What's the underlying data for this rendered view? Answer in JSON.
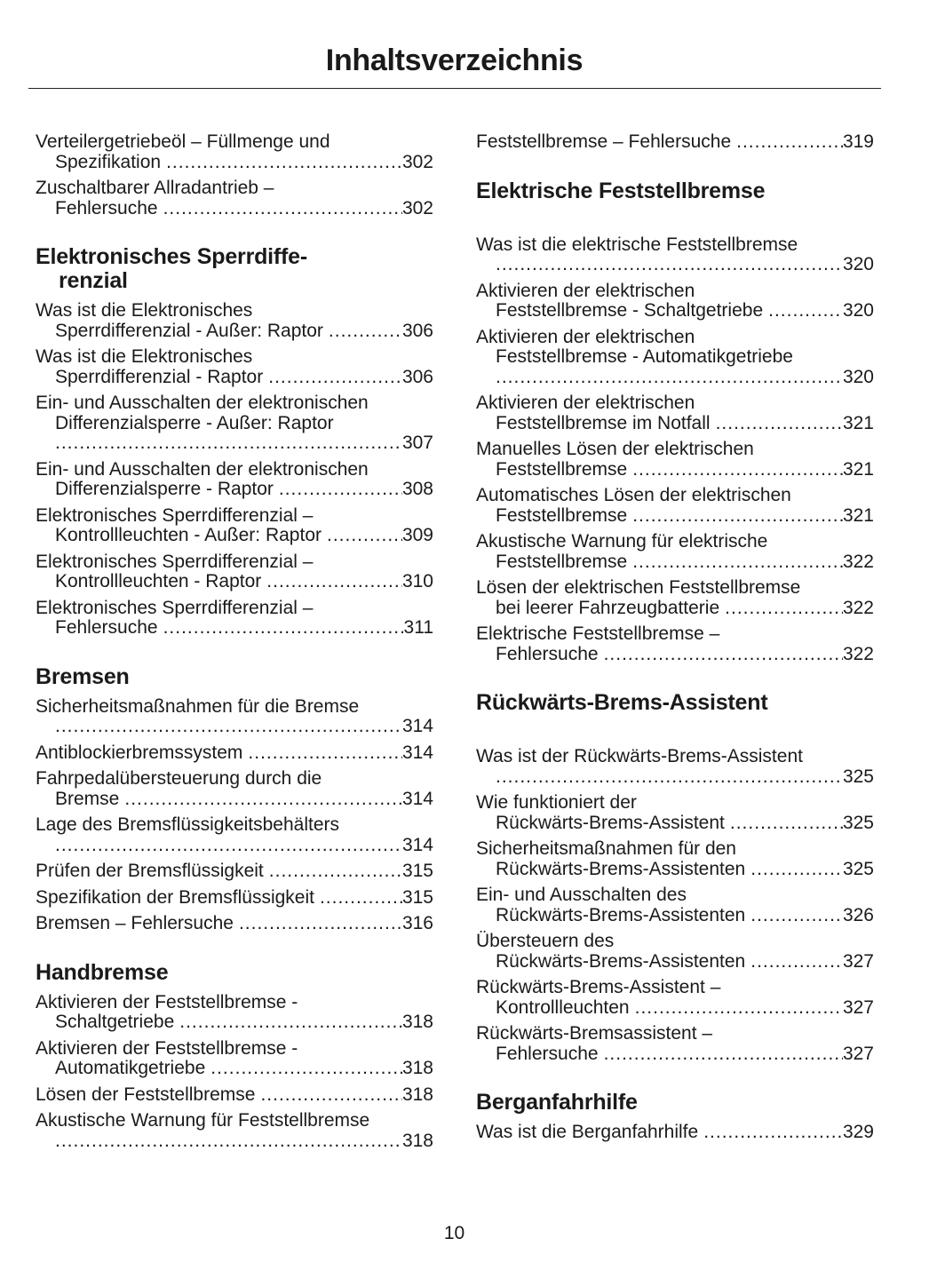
{
  "title": "Inhaltsverzeichnis",
  "page_number": "10",
  "left": [
    {
      "type": "entry",
      "lines": [
        "Verteilergetriebeöl – Füllmenge und",
        "Spezifikation"
      ],
      "page": "302"
    },
    {
      "type": "entry",
      "lines": [
        "Zuschaltbarer Allradantrieb –",
        "Fehlersuche"
      ],
      "page": "302"
    },
    {
      "type": "heading",
      "lines": [
        "Elektronisches Sperrdiffe-",
        "renzial"
      ]
    },
    {
      "type": "entry",
      "lines": [
        "Was ist die Elektronisches",
        "Sperrdifferenzial - Außer: Raptor"
      ],
      "page": "306"
    },
    {
      "type": "entry",
      "lines": [
        "Was ist die Elektronisches",
        "Sperrdifferenzial - Raptor"
      ],
      "page": "306"
    },
    {
      "type": "entry",
      "lines": [
        "Ein- und Ausschalten der elektronischen",
        "Differenzialsperre - Außer: Raptor",
        ""
      ],
      "page": "307"
    },
    {
      "type": "entry",
      "lines": [
        "Ein- und Ausschalten der elektronischen",
        "Differenzialsperre - Raptor"
      ],
      "page": "308"
    },
    {
      "type": "entry",
      "lines": [
        "Elektronisches Sperrdifferenzial –",
        "Kontrollleuchten - Außer: Raptor"
      ],
      "page": "309"
    },
    {
      "type": "entry",
      "lines": [
        "Elektronisches Sperrdifferenzial –",
        "Kontrollleuchten - Raptor"
      ],
      "page": "310"
    },
    {
      "type": "entry",
      "lines": [
        "Elektronisches Sperrdifferenzial –",
        "Fehlersuche"
      ],
      "page": "311"
    },
    {
      "type": "heading",
      "lines": [
        "Bremsen"
      ]
    },
    {
      "type": "entry",
      "lines": [
        "Sicherheitsmaßnahmen für die Bremse",
        ""
      ],
      "page": "314"
    },
    {
      "type": "entry",
      "lines": [
        "Antiblockierbremssystem"
      ],
      "page": "314"
    },
    {
      "type": "entry",
      "lines": [
        "Fahrpedalübersteuerung durch die",
        "Bremse"
      ],
      "page": "314"
    },
    {
      "type": "entry",
      "lines": [
        "Lage des Bremsflüssigkeitsbehälters",
        ""
      ],
      "page": "314"
    },
    {
      "type": "entry",
      "lines": [
        "Prüfen der Bremsflüssigkeit"
      ],
      "page": "315"
    },
    {
      "type": "entry",
      "lines": [
        "Spezifikation der Bremsflüssigkeit"
      ],
      "page": "315"
    },
    {
      "type": "entry",
      "lines": [
        "Bremsen – Fehlersuche"
      ],
      "page": "316"
    },
    {
      "type": "heading",
      "lines": [
        "Handbremse"
      ]
    },
    {
      "type": "entry",
      "lines": [
        "Aktivieren der Feststellbremse -",
        "Schaltgetriebe"
      ],
      "page": "318"
    },
    {
      "type": "entry",
      "lines": [
        "Aktivieren der Feststellbremse -",
        "Automatikgetriebe"
      ],
      "page": "318"
    },
    {
      "type": "entry",
      "lines": [
        "Lösen der Feststellbremse"
      ],
      "page": "318"
    },
    {
      "type": "entry",
      "lines": [
        "Akustische Warnung für Feststellbremse",
        ""
      ],
      "page": "318"
    }
  ],
  "right": [
    {
      "type": "entry",
      "lines": [
        "Feststellbremse – Fehlersuche"
      ],
      "page": "319"
    },
    {
      "type": "heading",
      "wide": true,
      "lines": [
        "Elektrische Feststellbremse"
      ]
    },
    {
      "type": "entry",
      "lines": [
        "Was ist die elektrische Feststellbremse",
        ""
      ],
      "page": "320"
    },
    {
      "type": "entry",
      "lines": [
        "Aktivieren der elektrischen",
        "Feststellbremse - Schaltgetriebe"
      ],
      "page": "320"
    },
    {
      "type": "entry",
      "lines": [
        "Aktivieren der elektrischen",
        "Feststellbremse - Automatikgetriebe",
        ""
      ],
      "page": "320"
    },
    {
      "type": "entry",
      "lines": [
        "Aktivieren der elektrischen",
        "Feststellbremse im Notfall"
      ],
      "page": "321"
    },
    {
      "type": "entry",
      "lines": [
        "Manuelles Lösen der elektrischen",
        "Feststellbremse"
      ],
      "page": "321"
    },
    {
      "type": "entry",
      "lines": [
        "Automatisches Lösen der elektrischen",
        "Feststellbremse"
      ],
      "page": "321"
    },
    {
      "type": "entry",
      "lines": [
        "Akustische Warnung für elektrische",
        "Feststellbremse"
      ],
      "page": "322"
    },
    {
      "type": "entry",
      "lines": [
        "Lösen der elektrischen Feststellbremse",
        "bei leerer Fahrzeugbatterie"
      ],
      "page": "322"
    },
    {
      "type": "entry",
      "lines": [
        "Elektrische Feststellbremse –",
        "Fehlersuche"
      ],
      "page": "322"
    },
    {
      "type": "heading",
      "wide": true,
      "lines": [
        "Rückwärts-Brems-Assistent"
      ]
    },
    {
      "type": "entry",
      "lines": [
        "Was ist der Rückwärts-Brems-Assistent",
        ""
      ],
      "page": "325"
    },
    {
      "type": "entry",
      "lines": [
        "Wie funktioniert der",
        "Rückwärts-Brems-Assistent"
      ],
      "page": "325"
    },
    {
      "type": "entry",
      "lines": [
        "Sicherheitsmaßnahmen für den",
        "Rückwärts-Brems-Assistenten"
      ],
      "page": "325"
    },
    {
      "type": "entry",
      "lines": [
        "Ein- und Ausschalten des",
        "Rückwärts-Brems-Assistenten"
      ],
      "page": "326"
    },
    {
      "type": "entry",
      "lines": [
        "Übersteuern des",
        "Rückwärts-Brems-Assistenten"
      ],
      "page": "327"
    },
    {
      "type": "entry",
      "lines": [
        "Rückwärts-Brems-Assistent –",
        "Kontrollleuchten"
      ],
      "page": "327"
    },
    {
      "type": "entry",
      "lines": [
        "Rückwärts-Bremsassistent –",
        "Fehlersuche"
      ],
      "page": "327"
    },
    {
      "type": "heading",
      "lines": [
        "Berganfahrhilfe"
      ]
    },
    {
      "type": "entry",
      "lines": [
        "Was ist die Berganfahrhilfe"
      ],
      "page": "329"
    }
  ]
}
